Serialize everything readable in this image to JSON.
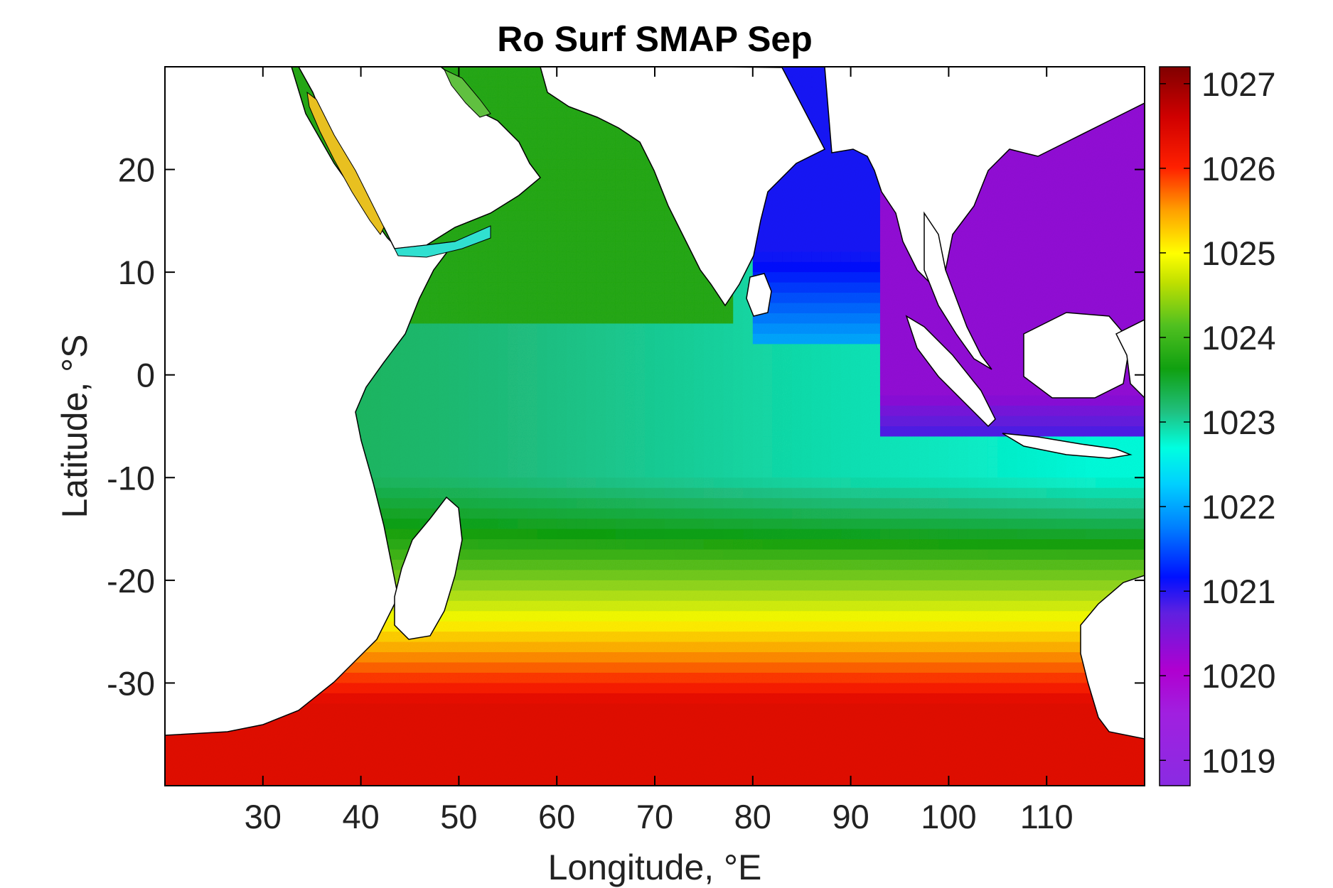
{
  "chart_data": {
    "type": "heatmap",
    "title": "Ro Surf SMAP Sep",
    "xlabel": "Longitude, °E",
    "ylabel": "Latitude, °S",
    "xlim": [
      20,
      120
    ],
    "ylim": [
      -40,
      30
    ],
    "x_ticks": [
      30,
      40,
      50,
      60,
      70,
      80,
      90,
      100,
      110
    ],
    "x_tick_labels": [
      "30",
      "40",
      "50",
      "60",
      "70",
      "80",
      "90",
      "100",
      "110"
    ],
    "y_ticks": [
      20,
      10,
      0,
      -10,
      -20,
      -30
    ],
    "y_tick_labels": [
      "20",
      "10",
      "0",
      "-10",
      "-20",
      "-30"
    ],
    "colorbar": {
      "range": [
        1018.7,
        1027.2
      ],
      "ticks": [
        1027,
        1026,
        1025,
        1024,
        1023,
        1022,
        1021,
        1020,
        1019
      ],
      "tick_labels": [
        "1027",
        "1026",
        "1025",
        "1024",
        "1023",
        "1022",
        "1021",
        "1020",
        "1019"
      ],
      "colormap": [
        "#8a2be2",
        "#b000d0",
        "#6020e0",
        "#0010ff",
        "#00a0ff",
        "#00ffe0",
        "#20c080",
        "#10a010",
        "#80d020",
        "#ffff00",
        "#ffa000",
        "#ff2000",
        "#d00000",
        "#800000"
      ]
    },
    "field_description_values": {
      "south_lat_minus35_value": 1026.3,
      "subtropical_lat_minus25_value": 1024.6,
      "lat_minus18_value": 1023.6,
      "arabian_sea_value": 1023.4,
      "equatorial_west_value": 1022.8,
      "equatorial_east_value": 1022.0,
      "bay_of_bengal_value": 1020.5,
      "andaman_south_china_sea_value": 1019.6,
      "red_sea_value": 1025.5
    }
  }
}
